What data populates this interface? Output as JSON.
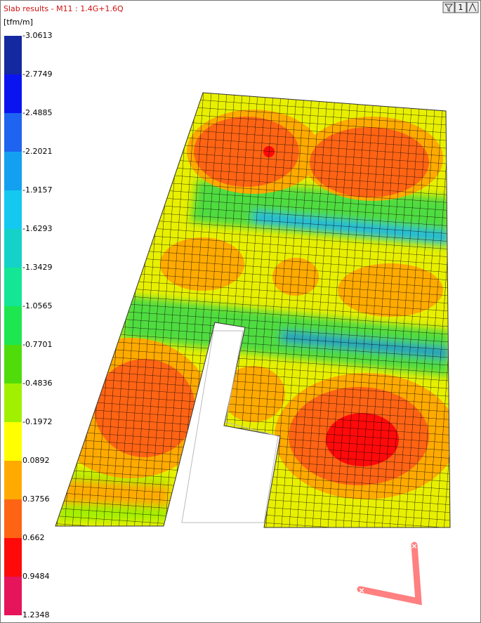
{
  "header": {
    "title": "Slab results - M11 : 1.4G+1.6Q",
    "page_button": "1"
  },
  "legend": {
    "unit": "[tfm/m]",
    "labels": [
      "-3.0613",
      "-2.7749",
      "-2.4885",
      "-2.2021",
      "-1.9157",
      "-1.6293",
      "-1.3429",
      "-1.0565",
      "-0.7701",
      "-0.4836",
      "-0.1972",
      "0.0892",
      "0.3756",
      "0.662",
      "0.9484",
      "1.2348"
    ],
    "colors": [
      "#1428a0",
      "#0a14f0",
      "#1e64f0",
      "#14a0f0",
      "#14c8f0",
      "#14d2c8",
      "#14e696",
      "#1ee650",
      "#50dc0a",
      "#a0f000",
      "#ffff00",
      "#ffaa00",
      "#ff6414",
      "#ff0a0a",
      "#e6145a"
    ]
  }
}
